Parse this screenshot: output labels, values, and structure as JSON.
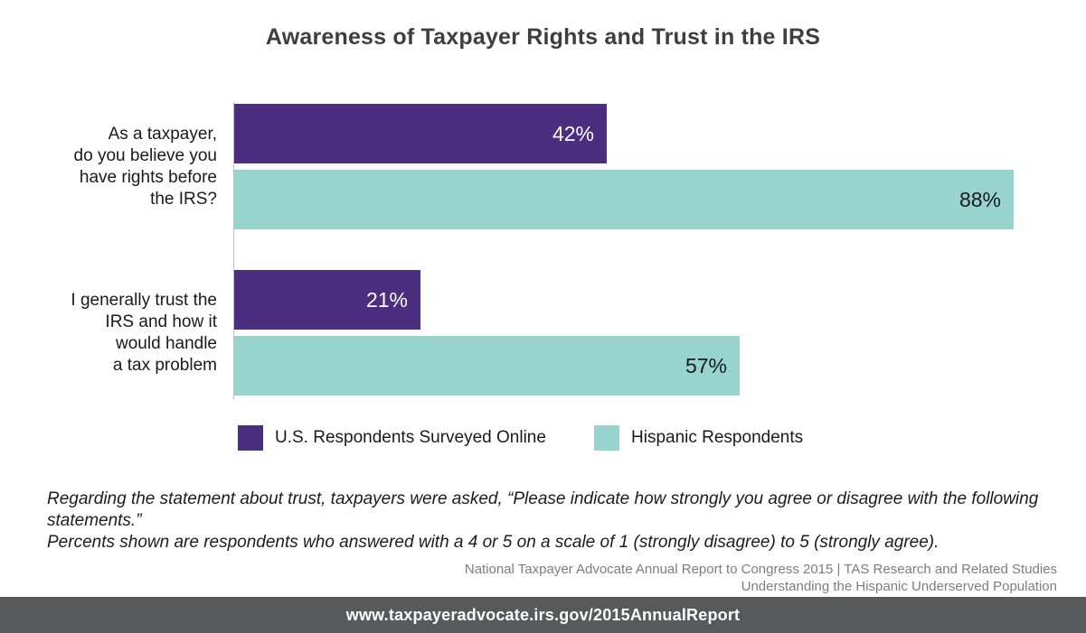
{
  "title": "Awareness of Taxpayer Rights and Trust in the IRS",
  "chart_data": {
    "type": "bar",
    "orientation": "horizontal",
    "title": "Awareness of Taxpayer Rights and Trust in the IRS",
    "categories": [
      "As a taxpayer,\ndo you believe you\nhave rights before\nthe IRS?",
      "I generally trust the\nIRS and how it\nwould handle\na tax problem"
    ],
    "series": [
      {
        "name": "U.S. Respondents Surveyed Online",
        "values": [
          42,
          21
        ],
        "color": "#4B2E80",
        "value_label_color": "#FFFFFF"
      },
      {
        "name": "Hispanic Respondents",
        "values": [
          88,
          57
        ],
        "color": "#98D4CE",
        "value_label_color": "#1A1A1A"
      }
    ],
    "value_suffix": "%",
    "value_labels": [
      "42%",
      "88%",
      "21%",
      "57%"
    ],
    "xlim": [
      0,
      100
    ],
    "grid": false,
    "legend_position": "bottom",
    "axis_line_color": "#BEBEBE"
  },
  "note": "Regarding the statement about trust, taxpayers were asked, “Please indicate how strongly you agree or disagree with the following statements.”\nPercents shown are respondents who answered with a 4 or 5 on a scale of 1 (strongly disagree) to 5 (strongly agree).",
  "attribution": "National Taxpayer Advocate Annual Report to Congress 2015 | TAS Research and Related Studies\nUnderstanding the Hispanic Underserved Population",
  "footer": {
    "url": "www.taxpayeradvocate.irs.gov/2015AnnualReport",
    "background": "#58595B",
    "text_color": "#FFFFFF"
  }
}
